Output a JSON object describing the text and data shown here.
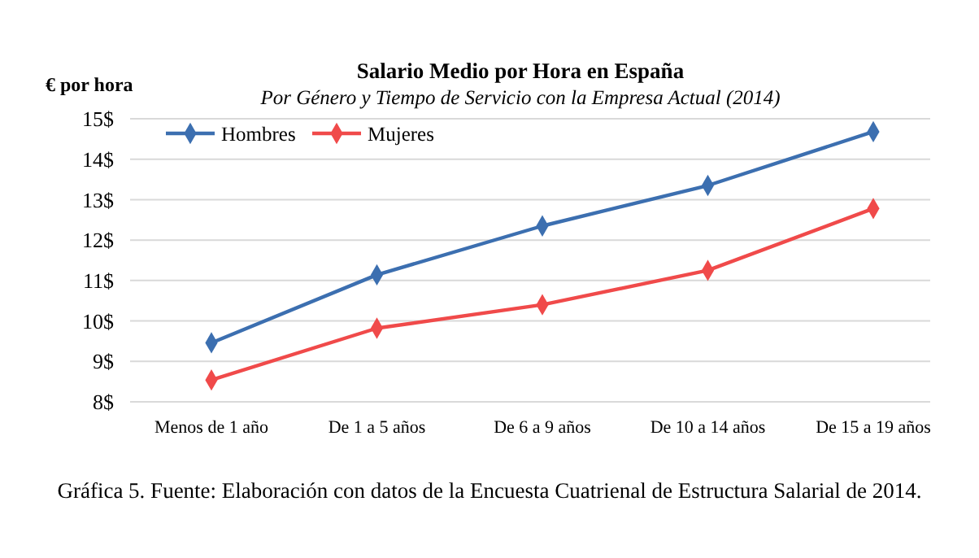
{
  "chart_data": {
    "type": "line",
    "title": "Salario Medio por Hora en España",
    "subtitle": "Por Género y  Tiempo de Servicio con la Empresa Actual   (2014)",
    "ylabel": "€ por hora",
    "categories": [
      "Menos de 1 año",
      "De 1 a 5 años",
      "De 6 a 9 años",
      "De 10 a 14 años",
      "De 15 a 19 años"
    ],
    "series": [
      {
        "name": "Hombres",
        "color": "#3c6fb0",
        "values": [
          9.46,
          11.14,
          12.35,
          13.35,
          14.68
        ]
      },
      {
        "name": "Mujeres",
        "color": "#f04a4a",
        "values": [
          8.54,
          9.82,
          10.4,
          11.25,
          12.78
        ]
      }
    ],
    "ylim": [
      8,
      15
    ],
    "yticks": [
      {
        "value": 8,
        "label": "8$"
      },
      {
        "value": 9,
        "label": "9$"
      },
      {
        "value": 10,
        "label": "10$"
      },
      {
        "value": 11,
        "label": "11$"
      },
      {
        "value": 12,
        "label": "12$"
      },
      {
        "value": 13,
        "label": "13$"
      },
      {
        "value": 14,
        "label": "14$"
      },
      {
        "value": 15,
        "label": "15$"
      }
    ],
    "grid": "y",
    "legend": "top left",
    "marker": "diamond",
    "line_style": "solid",
    "annotations": [
      "Gráfica 5. Fuente: Elaboración con datos de la Encuesta Cuatrienal de Estructura Salarial de 2014."
    ]
  }
}
